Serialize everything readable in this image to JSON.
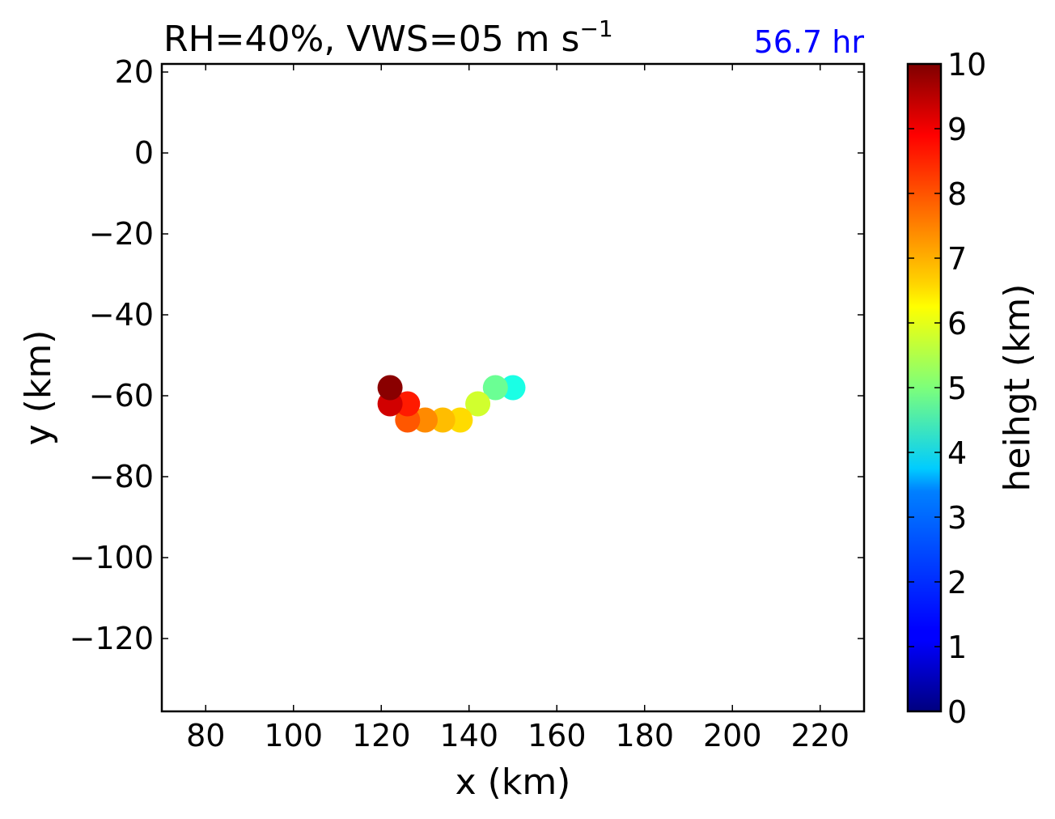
{
  "chart_data": {
    "type": "scatter",
    "title": "RH=40%, VWS=05 m s",
    "title_superscript": "−1",
    "annotation": "56.7 hr",
    "annotation_color": "#0000ff",
    "xlabel": "x (km)",
    "ylabel": "y (km)",
    "xlim": [
      70,
      230
    ],
    "ylim": [
      -138,
      22
    ],
    "xticks": [
      80,
      100,
      120,
      140,
      160,
      180,
      200,
      220
    ],
    "yticks": [
      20,
      0,
      -20,
      -40,
      -60,
      -80,
      -100,
      -120
    ],
    "xtick_labels": [
      "80",
      "100",
      "120",
      "140",
      "160",
      "180",
      "200",
      "220"
    ],
    "ytick_labels": [
      "20",
      "0",
      "−20",
      "−40",
      "−60",
      "−80",
      "−100",
      "−120"
    ],
    "grid": false,
    "points": [
      {
        "x": 150,
        "y": -58,
        "height": 4.0
      },
      {
        "x": 146,
        "y": -58,
        "height": 4.8
      },
      {
        "x": 142,
        "y": -62,
        "height": 5.8
      },
      {
        "x": 138,
        "y": -66,
        "height": 6.6
      },
      {
        "x": 134,
        "y": -66,
        "height": 6.9
      },
      {
        "x": 130,
        "y": -66,
        "height": 7.4
      },
      {
        "x": 126,
        "y": -66,
        "height": 7.9
      },
      {
        "x": 126,
        "y": -62,
        "height": 8.5
      },
      {
        "x": 122,
        "y": -62,
        "height": 9.2
      },
      {
        "x": 122,
        "y": -58,
        "height": 9.9
      }
    ],
    "colorbar": {
      "label": "heihgt (km)",
      "colormap": "jet",
      "range": [
        0,
        10
      ],
      "ticks": [
        0,
        1,
        2,
        3,
        4,
        5,
        6,
        7,
        8,
        9,
        10
      ],
      "tick_labels": [
        "0",
        "1",
        "2",
        "3",
        "4",
        "5",
        "6",
        "7",
        "8",
        "9",
        "10"
      ]
    }
  }
}
